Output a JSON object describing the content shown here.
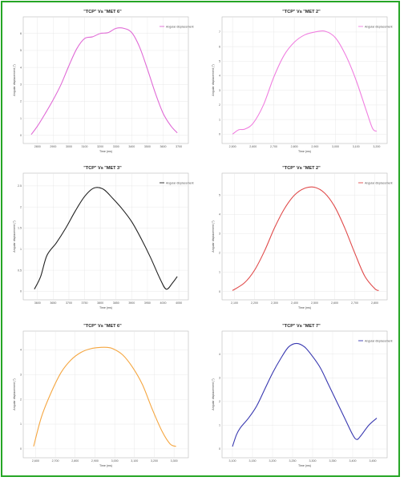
{
  "charts": [
    {
      "title": "\"TCP\" Vs \"MET 6\"",
      "xlabel": "Time (ms)",
      "ylabel": "Angular displacement (°)",
      "legend": "Angular displacement",
      "color": "#e06ad6",
      "x_ticks": [
        "2800",
        "2900",
        "3000",
        "3100",
        "3200",
        "3300",
        "3400",
        "3500",
        "3600",
        "3700"
      ],
      "y_ticks": [
        "0",
        "1",
        "2",
        "3",
        "4",
        "5",
        "6"
      ],
      "chart_data": {
        "type": "line",
        "xlim": [
          2750,
          3720
        ],
        "ylim": [
          -0.1,
          6.6
        ],
        "grid": true,
        "legend_placement": "top-right",
        "x": [
          2760,
          2800,
          2850,
          2900,
          2950,
          3000,
          3050,
          3100,
          3150,
          3200,
          3250,
          3300,
          3350,
          3400,
          3450,
          3500,
          3550,
          3600,
          3650,
          3690
        ],
        "y": [
          0.05,
          0.55,
          1.3,
          2.1,
          3.0,
          4.1,
          5.1,
          5.7,
          5.8,
          6.0,
          6.05,
          6.3,
          6.3,
          6.05,
          5.2,
          3.9,
          2.5,
          1.3,
          0.55,
          0.15
        ]
      }
    },
    {
      "title": "\"TCP\" Vs \"MET 2\"",
      "xlabel": "Time (ms)",
      "ylabel": "Angular displacement (°)",
      "legend": "Angular displacement",
      "color": "#f07fe0",
      "x_ticks": [
        "2,500",
        "2,600",
        "2,700",
        "2,800",
        "2,900",
        "3,000",
        "3,100",
        "3,200"
      ],
      "y_ticks": [
        "0",
        "1",
        "2",
        "3",
        "4",
        "5",
        "6",
        "7"
      ],
      "chart_data": {
        "type": "line",
        "xlim": [
          2480,
          3220
        ],
        "ylim": [
          -0.2,
          7.6
        ],
        "grid": true,
        "legend_placement": "top-right",
        "x": [
          2500,
          2530,
          2560,
          2600,
          2650,
          2700,
          2750,
          2800,
          2850,
          2900,
          2950,
          3000,
          3050,
          3100,
          3150,
          3180,
          3200
        ],
        "y": [
          0.0,
          0.3,
          0.35,
          0.75,
          2.0,
          3.9,
          5.4,
          6.3,
          6.8,
          7.0,
          7.05,
          6.6,
          5.4,
          3.7,
          1.6,
          0.4,
          0.2
        ]
      }
    },
    {
      "title": "\"TCP\" Vs \"MET 3\"",
      "xlabel": "Time (ms)",
      "ylabel": "Angular displacement (°)",
      "legend": "Angular displacement",
      "color": "#222222",
      "x_ticks": [
        "3600",
        "3650",
        "3700",
        "3750",
        "3800",
        "3850",
        "3900",
        "3950",
        "4000",
        "4050"
      ],
      "y_ticks": [
        "0",
        "0.5",
        "1",
        "1.5",
        "2",
        "2.5"
      ],
      "chart_data": {
        "type": "line",
        "xlim": [
          3575,
          4060
        ],
        "ylim": [
          -0.05,
          2.65
        ],
        "grid": true,
        "legend_placement": "top-right",
        "x": [
          3590,
          3610,
          3630,
          3660,
          3690,
          3720,
          3750,
          3780,
          3810,
          3840,
          3870,
          3900,
          3930,
          3960,
          3990,
          4010,
          4030,
          4045
        ],
        "y": [
          0.05,
          0.35,
          0.85,
          1.15,
          1.5,
          1.9,
          2.25,
          2.45,
          2.42,
          2.2,
          1.95,
          1.65,
          1.25,
          0.8,
          0.3,
          0.05,
          0.2,
          0.35
        ]
      }
    },
    {
      "title": "\"TCP\" Vs \"MET 2\"",
      "xlabel": "Time (ms)",
      "ylabel": "Angular displacement (°)",
      "legend": "Angular displacement",
      "color": "#e04a4a",
      "x_ticks": [
        "2,100",
        "2,200",
        "2,300",
        "2,400",
        "2,500",
        "2,600",
        "2,700",
        "2,800"
      ],
      "y_ticks": [
        "0",
        "1",
        "2",
        "3",
        "4",
        "5"
      ],
      "chart_data": {
        "type": "line",
        "xlim": [
          2070,
          2830
        ],
        "ylim": [
          -0.1,
          5.8
        ],
        "grid": true,
        "legend_placement": "top-right",
        "x": [
          2090,
          2150,
          2200,
          2250,
          2300,
          2350,
          2400,
          2450,
          2500,
          2550,
          2600,
          2650,
          2700,
          2750,
          2800,
          2820
        ],
        "y": [
          0.05,
          0.45,
          1.1,
          2.1,
          3.3,
          4.3,
          5.0,
          5.35,
          5.4,
          5.1,
          4.4,
          3.3,
          2.0,
          0.8,
          0.15,
          0.05
        ]
      }
    },
    {
      "title": "\"TCP\" Vs \"MET 6\"",
      "xlabel": "Time (ms)",
      "ylabel": "Angular displacement (°)",
      "legend": "",
      "color": "#f5a640",
      "x_ticks": [
        "2,600",
        "2,700",
        "2,800",
        "2,900",
        "3,000",
        "3,100",
        "3,200",
        "3,300"
      ],
      "y_ticks": [
        "0",
        "1",
        "2",
        "3",
        "4"
      ],
      "chart_data": {
        "type": "line",
        "xlim": [
          2570,
          3340
        ],
        "ylim": [
          -0.1,
          4.5
        ],
        "grid": true,
        "legend_placement": "top-right",
        "x": [
          2590,
          2630,
          2680,
          2730,
          2780,
          2830,
          2880,
          2930,
          2960,
          2990,
          3040,
          3090,
          3140,
          3190,
          3240,
          3280,
          3310
        ],
        "y": [
          0.1,
          1.3,
          2.3,
          3.1,
          3.6,
          3.9,
          4.05,
          4.1,
          4.1,
          4.05,
          3.8,
          3.3,
          2.6,
          1.6,
          0.7,
          0.2,
          0.1
        ]
      }
    },
    {
      "title": "\"TCP\" Vs \"MET 7\"",
      "xlabel": "Time (ms)",
      "ylabel": "Angular displacement (°)",
      "legend": "Angular displacement",
      "color": "#3838b0",
      "x_ticks": [
        "3,100",
        "3,150",
        "3,200",
        "3,250",
        "3,300",
        "3,350",
        "3,400",
        "3,450"
      ],
      "y_ticks": [
        "0",
        "1",
        "2",
        "3",
        "4"
      ],
      "chart_data": {
        "type": "line",
        "xlim": [
          3090,
          3470
        ],
        "ylim": [
          -0.1,
          4.7
        ],
        "grid": true,
        "legend_placement": "top-right",
        "x": [
          3100,
          3110,
          3120,
          3140,
          3160,
          3180,
          3200,
          3220,
          3240,
          3260,
          3280,
          3300,
          3320,
          3340,
          3360,
          3380,
          3400,
          3410,
          3420,
          3440,
          3460
        ],
        "y": [
          0.1,
          0.6,
          0.9,
          1.3,
          1.8,
          2.5,
          3.2,
          3.8,
          4.3,
          4.45,
          4.3,
          3.9,
          3.4,
          2.7,
          2.0,
          1.3,
          0.6,
          0.4,
          0.55,
          1.0,
          1.3
        ]
      }
    }
  ]
}
